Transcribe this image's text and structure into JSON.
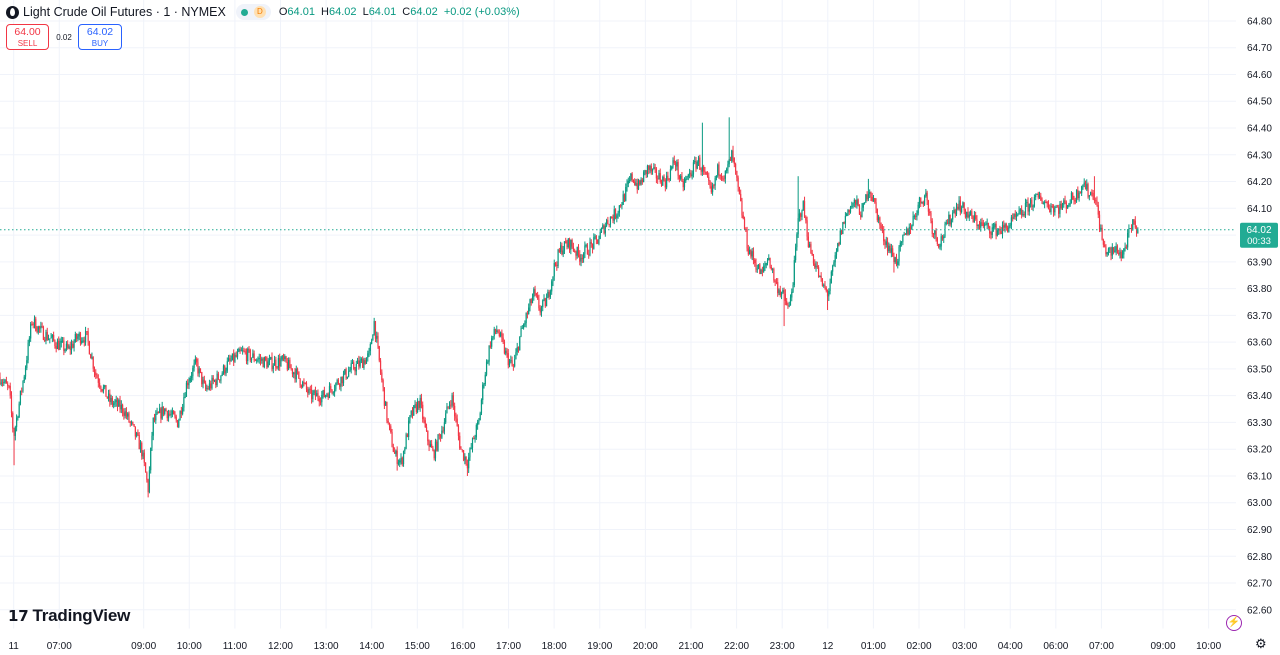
{
  "header": {
    "title": "Light Crude Oil Futures · 1 · NYMEX",
    "delay_badge": "D",
    "open_label": "O",
    "open": "64.01",
    "high_label": "H",
    "high": "64.02",
    "low_label": "L",
    "low": "64.01",
    "close_label": "C",
    "close": "64.02",
    "change": "+0.02 (+0.03%)"
  },
  "trade": {
    "sell_price": "64.00",
    "sell_label": "SELL",
    "spread": "0.02",
    "buy_price": "64.02",
    "buy_label": "BUY"
  },
  "price_marker": {
    "price": "64.02",
    "countdown": "00:33",
    "value": 64.02
  },
  "branding": {
    "logo_mark": "17",
    "logo_text": "TradingView"
  },
  "colors": {
    "up": "#089981",
    "down": "#f23645",
    "grid": "#f0f3fa",
    "current": "#22ab94"
  },
  "icons": {
    "bolt": "lightning-icon",
    "settings": "gear-icon",
    "symbol": "oil-drop-icon"
  },
  "chart_data": {
    "type": "candlestick",
    "title": "Light Crude Oil Futures · 1 · NYMEX",
    "ylim": [
      62.56,
      64.82
    ],
    "y_ticks": [
      "64.80",
      "64.70",
      "64.60",
      "64.50",
      "64.40",
      "64.30",
      "64.20",
      "64.10",
      "64.00",
      "63.90",
      "63.80",
      "63.70",
      "63.60",
      "63.50",
      "63.40",
      "63.30",
      "63.20",
      "63.10",
      "63.00",
      "62.90",
      "62.80",
      "62.70",
      "62.60"
    ],
    "x_ticks": [
      {
        "label": "11",
        "t": 0.3
      },
      {
        "label": "07:00",
        "t": 1.3
      },
      {
        "label": "09:00",
        "t": 3.15
      },
      {
        "label": "10:00",
        "t": 4.15
      },
      {
        "label": "11:00",
        "t": 5.15
      },
      {
        "label": "12:00",
        "t": 6.15
      },
      {
        "label": "13:00",
        "t": 7.15
      },
      {
        "label": "14:00",
        "t": 8.15
      },
      {
        "label": "15:00",
        "t": 9.15
      },
      {
        "label": "16:00",
        "t": 10.15
      },
      {
        "label": "17:00",
        "t": 11.15
      },
      {
        "label": "18:00",
        "t": 12.15
      },
      {
        "label": "19:00",
        "t": 13.15
      },
      {
        "label": "20:00",
        "t": 14.15
      },
      {
        "label": "21:00",
        "t": 15.15
      },
      {
        "label": "22:00",
        "t": 16.15
      },
      {
        "label": "23:00",
        "t": 17.15
      },
      {
        "label": "12",
        "t": 18.15
      },
      {
        "label": "01:00",
        "t": 19.15
      },
      {
        "label": "02:00",
        "t": 20.15
      },
      {
        "label": "03:00",
        "t": 21.15
      },
      {
        "label": "04:00",
        "t": 22.15
      },
      {
        "label": "06:00",
        "t": 23.15
      },
      {
        "label": "07:00",
        "t": 24.15
      },
      {
        "label": "09:00",
        "t": 25.5
      },
      {
        "label": "10:00",
        "t": 26.5
      }
    ],
    "x_range": [
      0,
      27.1
    ],
    "current_price": 64.02,
    "grid": true,
    "path": [
      [
        0.0,
        63.47
      ],
      [
        0.2,
        63.42
      ],
      [
        0.3,
        63.25
      ],
      [
        0.45,
        63.4
      ],
      [
        0.55,
        63.5
      ],
      [
        0.7,
        63.68
      ],
      [
        0.9,
        63.64
      ],
      [
        1.2,
        63.6
      ],
      [
        1.5,
        63.57
      ],
      [
        1.7,
        63.62
      ],
      [
        1.9,
        63.62
      ],
      [
        2.1,
        63.48
      ],
      [
        2.4,
        63.38
      ],
      [
        2.7,
        63.35
      ],
      [
        2.9,
        63.28
      ],
      [
        3.1,
        63.2
      ],
      [
        3.25,
        63.05
      ],
      [
        3.35,
        63.3
      ],
      [
        3.6,
        63.35
      ],
      [
        3.9,
        63.3
      ],
      [
        4.1,
        63.45
      ],
      [
        4.3,
        63.52
      ],
      [
        4.5,
        63.42
      ],
      [
        4.8,
        63.47
      ],
      [
        5.0,
        63.52
      ],
      [
        5.3,
        63.56
      ],
      [
        5.6,
        63.54
      ],
      [
        5.9,
        63.52
      ],
      [
        6.2,
        63.53
      ],
      [
        6.5,
        63.48
      ],
      [
        6.8,
        63.4
      ],
      [
        7.1,
        63.4
      ],
      [
        7.4,
        63.45
      ],
      [
        7.7,
        63.5
      ],
      [
        7.9,
        63.52
      ],
      [
        8.1,
        63.55
      ],
      [
        8.2,
        63.68
      ],
      [
        8.35,
        63.48
      ],
      [
        8.5,
        63.3
      ],
      [
        8.65,
        63.18
      ],
      [
        8.8,
        63.15
      ],
      [
        9.0,
        63.32
      ],
      [
        9.2,
        63.38
      ],
      [
        9.35,
        63.25
      ],
      [
        9.5,
        63.18
      ],
      [
        9.7,
        63.28
      ],
      [
        9.9,
        63.4
      ],
      [
        10.0,
        63.3
      ],
      [
        10.1,
        63.2
      ],
      [
        10.25,
        63.15
      ],
      [
        10.4,
        63.25
      ],
      [
        10.5,
        63.3
      ],
      [
        10.6,
        63.45
      ],
      [
        10.75,
        63.6
      ],
      [
        10.9,
        63.65
      ],
      [
        11.1,
        63.55
      ],
      [
        11.25,
        63.5
      ],
      [
        11.4,
        63.62
      ],
      [
        11.55,
        63.7
      ],
      [
        11.7,
        63.78
      ],
      [
        11.85,
        63.72
      ],
      [
        12.0,
        63.76
      ],
      [
        12.15,
        63.88
      ],
      [
        12.3,
        63.95
      ],
      [
        12.5,
        63.97
      ],
      [
        12.7,
        63.92
      ],
      [
        12.9,
        63.95
      ],
      [
        13.1,
        63.98
      ],
      [
        13.3,
        64.05
      ],
      [
        13.5,
        64.08
      ],
      [
        13.7,
        64.15
      ],
      [
        13.85,
        64.22
      ],
      [
        14.0,
        64.18
      ],
      [
        14.2,
        64.25
      ],
      [
        14.4,
        64.22
      ],
      [
        14.6,
        64.2
      ],
      [
        14.8,
        64.28
      ],
      [
        14.95,
        64.18
      ],
      [
        15.1,
        64.22
      ],
      [
        15.3,
        64.28
      ],
      [
        15.5,
        64.2
      ],
      [
        15.6,
        64.15
      ],
      [
        15.75,
        64.25
      ],
      [
        15.9,
        64.22
      ],
      [
        16.05,
        64.3
      ],
      [
        16.2,
        64.15
      ],
      [
        16.3,
        64.05
      ],
      [
        16.4,
        63.95
      ],
      [
        16.55,
        63.9
      ],
      [
        16.7,
        63.85
      ],
      [
        16.85,
        63.92
      ],
      [
        17.0,
        63.82
      ],
      [
        17.15,
        63.78
      ],
      [
        17.3,
        63.72
      ],
      [
        17.4,
        63.85
      ],
      [
        17.5,
        64.05
      ],
      [
        17.6,
        64.12
      ],
      [
        17.75,
        63.95
      ],
      [
        17.9,
        63.88
      ],
      [
        18.0,
        63.82
      ],
      [
        18.15,
        63.78
      ],
      [
        18.3,
        63.9
      ],
      [
        18.45,
        64.02
      ],
      [
        18.6,
        64.1
      ],
      [
        18.75,
        64.12
      ],
      [
        18.9,
        64.08
      ],
      [
        19.05,
        64.18
      ],
      [
        19.2,
        64.1
      ],
      [
        19.35,
        64.0
      ],
      [
        19.5,
        63.95
      ],
      [
        19.65,
        63.9
      ],
      [
        19.8,
        63.98
      ],
      [
        20.0,
        64.05
      ],
      [
        20.15,
        64.12
      ],
      [
        20.3,
        64.15
      ],
      [
        20.45,
        64.02
      ],
      [
        20.6,
        63.97
      ],
      [
        20.8,
        64.05
      ],
      [
        21.0,
        64.12
      ],
      [
        21.2,
        64.08
      ],
      [
        21.4,
        64.05
      ],
      [
        21.6,
        64.03
      ],
      [
        21.8,
        64.02
      ],
      [
        22.0,
        64.02
      ],
      [
        22.2,
        64.05
      ],
      [
        22.4,
        64.08
      ],
      [
        22.6,
        64.12
      ],
      [
        22.8,
        64.14
      ],
      [
        23.0,
        64.11
      ],
      [
        23.2,
        64.1
      ],
      [
        23.4,
        64.12
      ],
      [
        23.6,
        64.15
      ],
      [
        23.75,
        64.2
      ],
      [
        23.85,
        64.16
      ],
      [
        24.0,
        64.15
      ],
      [
        24.1,
        64.05
      ],
      [
        24.2,
        63.95
      ],
      [
        24.35,
        63.93
      ],
      [
        24.5,
        63.95
      ],
      [
        24.6,
        63.92
      ],
      [
        24.75,
        64.0
      ],
      [
        24.85,
        64.04
      ],
      [
        24.95,
        64.02
      ]
    ],
    "spikes": [
      {
        "t": 0.3,
        "lo": 63.14
      },
      {
        "t": 0.75,
        "hi": 63.7
      },
      {
        "t": 3.25,
        "lo": 63.02
      },
      {
        "t": 8.2,
        "hi": 63.69
      },
      {
        "t": 8.7,
        "lo": 63.12
      },
      {
        "t": 10.25,
        "lo": 63.1
      },
      {
        "t": 15.4,
        "hi": 64.42
      },
      {
        "t": 16.0,
        "hi": 64.44
      },
      {
        "t": 17.2,
        "lo": 63.66
      },
      {
        "t": 17.5,
        "hi": 64.22
      },
      {
        "t": 18.15,
        "lo": 63.72
      },
      {
        "t": 19.05,
        "hi": 64.21
      },
      {
        "t": 19.6,
        "lo": 63.86
      },
      {
        "t": 24.0,
        "hi": 64.22
      }
    ]
  }
}
